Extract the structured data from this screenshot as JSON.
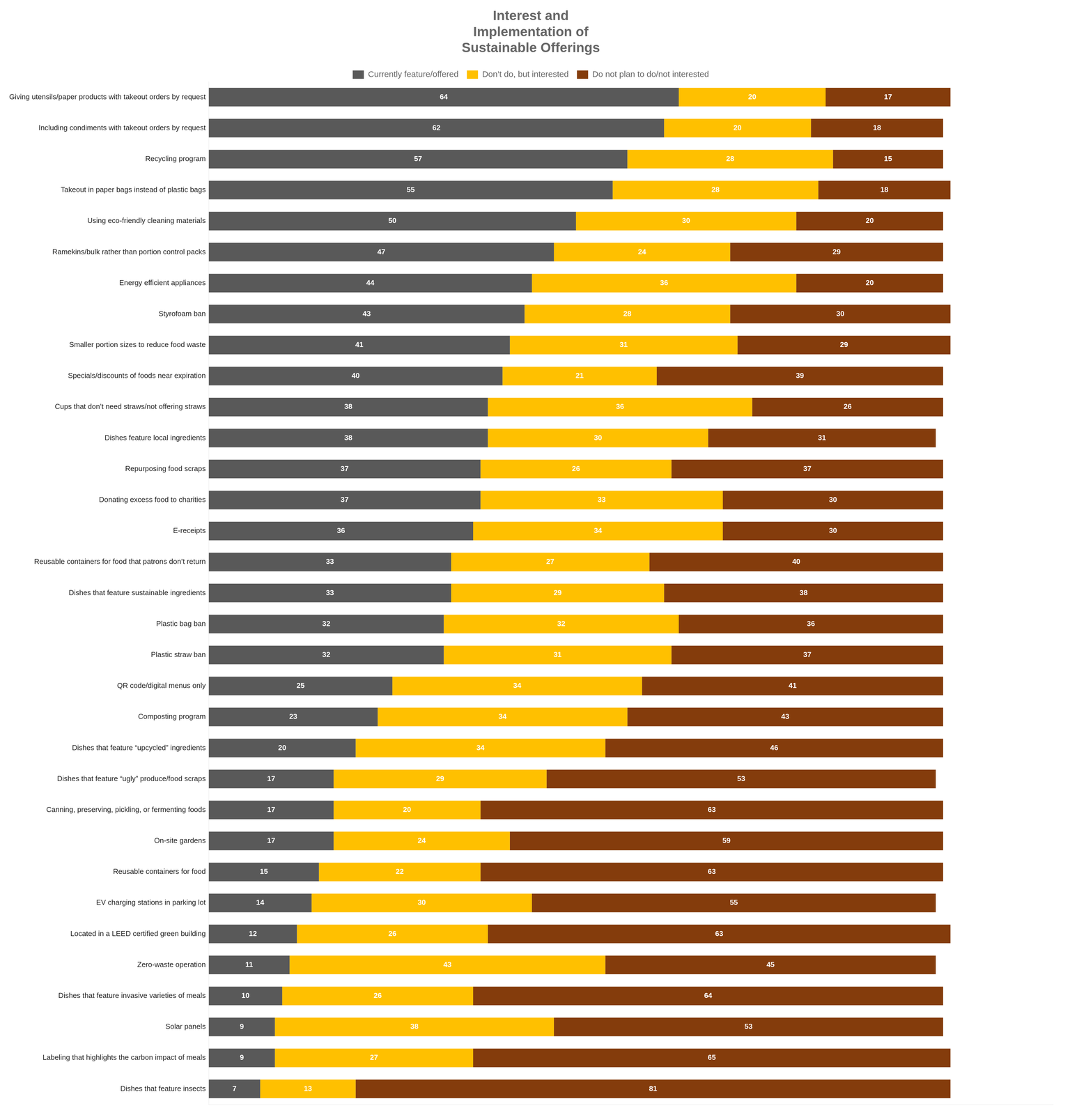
{
  "chart_data": {
    "type": "bar",
    "orientation": "horizontal",
    "stacked": true,
    "title": [
      "Interest and",
      "Implementation of",
      "Sustainable Offerings"
    ],
    "categories": [
      "Giving utensils/paper products with takeout orders by request",
      "Including condiments with takeout orders by request",
      "Recycling program",
      "Takeout in paper bags instead of plastic bags",
      "Using eco-friendly cleaning materials",
      "Ramekins/bulk rather than portion control packs",
      "Energy efficient appliances",
      "Styrofoam ban",
      "Smaller portion sizes to reduce food waste",
      "Specials/discounts of foods near expiration",
      "Cups that don’t need straws/not offering straws",
      "Dishes feature local ingredients",
      "Repurposing food scraps",
      "Donating excess food to charities",
      "E-receipts",
      "Reusable containers for food that patrons don’t return",
      "Dishes that feature sustainable ingredients",
      "Plastic bag ban",
      "Plastic straw ban",
      "QR code/digital menus only",
      "Composting program",
      "Dishes that feature “upcycled” ingredients",
      "Dishes that feature “ugly” produce/food scraps",
      "Canning, preserving, pickling, or fermenting foods",
      "On-site gardens",
      "Reusable containers for food",
      "EV charging stations in parking lot",
      "Located in a LEED certified green building",
      "Zero-waste operation",
      "Dishes that feature invasive varieties of meals",
      "Solar panels",
      "Labeling that highlights the carbon impact of meals",
      "Dishes that feature insects"
    ],
    "series": [
      {
        "name": "Currently feature/offered",
        "color": "#595959",
        "values": [
          64,
          62,
          57,
          55,
          50,
          47,
          44,
          43,
          41,
          40,
          38,
          38,
          37,
          37,
          36,
          33,
          33,
          32,
          32,
          25,
          23,
          20,
          17,
          17,
          17,
          15,
          14,
          12,
          11,
          10,
          9,
          9,
          7
        ]
      },
      {
        "name": "Don’t do,\nbut interested",
        "color": "#FFC000",
        "values": [
          20,
          20,
          28,
          28,
          30,
          24,
          36,
          28,
          31,
          21,
          36,
          30,
          26,
          33,
          34,
          27,
          29,
          32,
          31,
          34,
          34,
          34,
          29,
          20,
          24,
          22,
          30,
          26,
          43,
          26,
          38,
          27,
          13
        ]
      },
      {
        "name": "Do not plan\nto do/not\ninterested",
        "color": "#843C0C",
        "values": [
          17,
          18,
          15,
          18,
          20,
          29,
          20,
          30,
          29,
          39,
          26,
          31,
          37,
          30,
          30,
          40,
          38,
          36,
          37,
          41,
          43,
          46,
          53,
          63,
          59,
          63,
          55,
          63,
          45,
          64,
          53,
          65,
          81
        ]
      }
    ],
    "xlim": [
      0,
      115
    ],
    "xticks": [],
    "tick_labels": "y",
    "grid": false,
    "legend": "top",
    "data_labels": true
  }
}
